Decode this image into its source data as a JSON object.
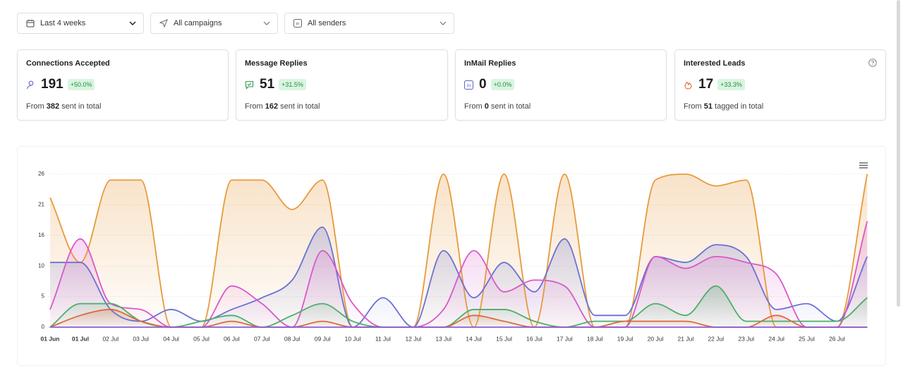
{
  "filters": {
    "date": "Last 4 weeks",
    "campaigns": "All campaigns",
    "senders": "All senders"
  },
  "cards": [
    {
      "title": "Connections Accepted",
      "value": 191,
      "change": "+50.0%",
      "sub_prefix": "From",
      "sub_number": 382,
      "sub_suffix": "sent in total"
    },
    {
      "title": "Message Replies",
      "value": 51,
      "change": "+31.5%",
      "sub_prefix": "From",
      "sub_number": 162,
      "sub_suffix": "sent in total"
    },
    {
      "title": "InMail Replies",
      "value": 0,
      "change": "+0.0%",
      "sub_prefix": "From",
      "sub_number": 0,
      "sub_suffix": "sent in total"
    },
    {
      "title": "Interested Leads",
      "value": 17,
      "change": "+33.3%",
      "sub_prefix": "From",
      "sub_number": 51,
      "sub_suffix": "tagged in total"
    }
  ],
  "chart_data": {
    "type": "area",
    "categories": [
      "01 Jun",
      "01 Jul",
      "02 Jul",
      "03 Jul",
      "04 Jul",
      "05 Jul",
      "06 Jul",
      "07 Jul",
      "08 Jul",
      "09 Jul",
      "10 Jul",
      "11 Jul",
      "12 Jul",
      "13 Jul",
      "14 Jul",
      "15 Jul",
      "16 Jul",
      "17 Jul",
      "18 Jul",
      "19 Jul",
      "20 Jul",
      "21 Jul",
      "22 Jul",
      "23 Jul",
      "24 Jul",
      "25 Jul",
      "26 Jul",
      null
    ],
    "series": [
      {
        "color": "#e79a3c",
        "values": [
          22,
          11,
          25,
          25,
          0,
          0,
          25,
          25,
          20,
          25,
          0,
          0,
          0,
          26,
          0,
          26,
          0,
          26,
          0,
          0,
          25,
          26,
          24,
          25,
          0,
          0,
          0,
          26
        ]
      },
      {
        "color": "#6a72d2",
        "values": [
          11,
          11,
          3,
          1,
          3,
          1,
          3,
          5,
          8,
          17,
          0,
          5,
          0,
          13,
          5,
          11,
          6,
          15,
          2,
          2,
          12,
          11,
          14,
          12,
          3,
          4,
          1,
          12
        ]
      },
      {
        "color": "#d958c9",
        "values": [
          3,
          15,
          4,
          3,
          0,
          0,
          7,
          4,
          0,
          13,
          4,
          0,
          0,
          3,
          13,
          6,
          8,
          7,
          0,
          0,
          12,
          10,
          12,
          11,
          9,
          0,
          0,
          18
        ]
      },
      {
        "color": "#4caf68",
        "values": [
          0,
          4,
          4,
          1,
          0,
          1,
          2,
          0,
          2,
          4,
          1,
          0,
          0,
          0,
          3,
          3,
          1,
          0,
          1,
          1,
          4,
          2,
          7,
          1,
          1,
          1,
          1,
          5
        ]
      },
      {
        "color": "#e0683a",
        "values": [
          0,
          2,
          3,
          1,
          0,
          0,
          1,
          0,
          0,
          1,
          0,
          0,
          0,
          0,
          2,
          1,
          0,
          0,
          0,
          1,
          1,
          1,
          0,
          0,
          2,
          0,
          0,
          0
        ]
      },
      {
        "color": "#8a5cd6",
        "values": [
          0,
          0,
          0,
          0,
          0,
          0,
          0,
          0,
          0,
          0,
          0,
          0,
          0,
          0,
          0,
          0,
          0,
          0,
          0,
          0,
          0,
          0,
          0,
          0,
          0,
          0,
          0,
          0
        ]
      }
    ],
    "ylim": [
      0,
      26
    ],
    "yticks": [
      0,
      {
        "value": 5.2,
        "label": "5"
      },
      {
        "value": 10.4,
        "label": "10"
      },
      {
        "value": 15.6,
        "label": "16"
      },
      {
        "value": 20.8,
        "label": "21"
      },
      26
    ],
    "grid": true
  }
}
